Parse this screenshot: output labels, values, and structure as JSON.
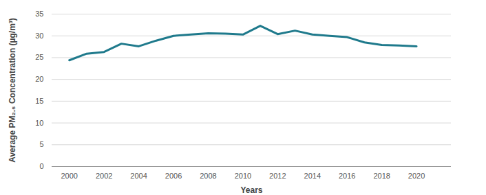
{
  "chart_data": {
    "type": "line",
    "x_label": "Years",
    "y_label": "Average PM₂.₅ Concentration (µg/m³)",
    "x": [
      2000,
      2001,
      2002,
      2003,
      2004,
      2005,
      2006,
      2007,
      2008,
      2009,
      2010,
      2011,
      2012,
      2013,
      2014,
      2015,
      2016,
      2017,
      2018,
      2019,
      2020
    ],
    "values": [
      24.4,
      25.9,
      26.3,
      28.2,
      27.6,
      28.9,
      30.0,
      30.3,
      30.6,
      30.5,
      30.3,
      32.3,
      30.4,
      31.2,
      30.3,
      30.0,
      29.7,
      28.5,
      27.9,
      27.8,
      27.6
    ],
    "color": "#1f7a8c",
    "xlim": [
      1999,
      2022
    ],
    "xticks": [
      2000,
      2002,
      2004,
      2006,
      2008,
      2010,
      2012,
      2014,
      2016,
      2018,
      2020
    ],
    "ylim": [
      0,
      35
    ],
    "yticks": [
      0,
      5,
      10,
      15,
      20,
      25,
      30,
      35
    ],
    "grid": true
  }
}
